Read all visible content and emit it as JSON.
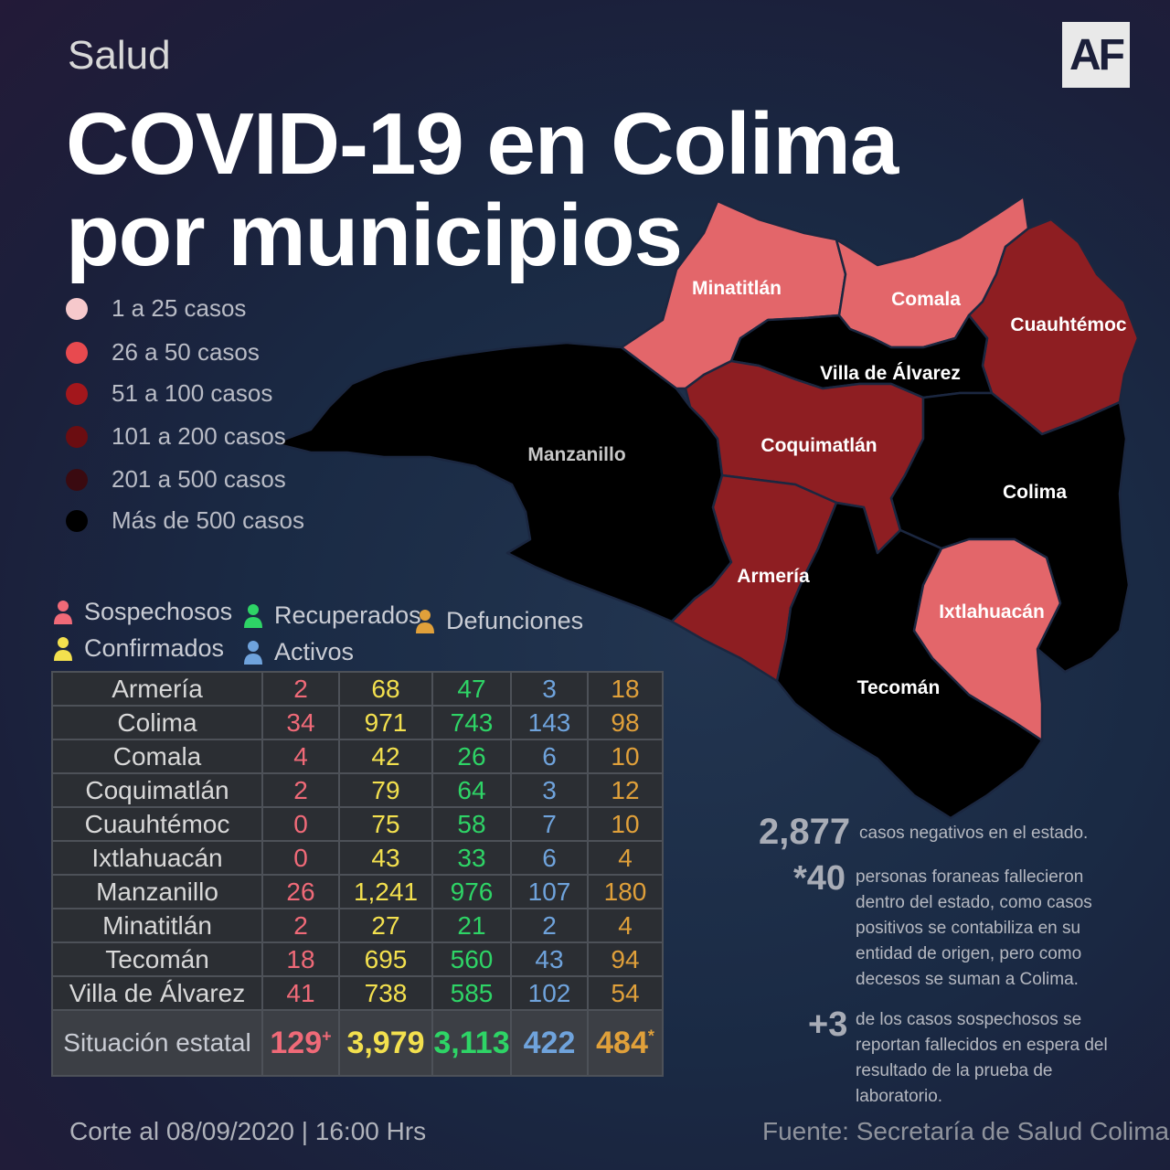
{
  "header": {
    "section": "Salud",
    "title_line1": "COVID-19 en Colima",
    "title_line2": "por municipios",
    "logo": "AF"
  },
  "legend": [
    {
      "label": "1 a 25 casos",
      "color": "#f6c9cc"
    },
    {
      "label": "26 a  50 casos",
      "color": "#e84a4f"
    },
    {
      "label": "51 a  100 casos",
      "color": "#a3171c"
    },
    {
      "label": "101 a  200 casos",
      "color": "#6b0d11"
    },
    {
      "label": "201  a  500 casos",
      "color": "#3a0a10"
    },
    {
      "label": "Más de 500 casos",
      "color": "#000000"
    }
  ],
  "categories": {
    "sospechosos": {
      "label": "Sospechosos",
      "color": "#f06a78",
      "icon": "person-icon"
    },
    "confirmados": {
      "label": "Confirmados",
      "color": "#f3e04e",
      "icon": "person-icon"
    },
    "recuperados": {
      "label": "Recuperados",
      "color": "#2ed466",
      "icon": "person-icon"
    },
    "activos": {
      "label": "Activos",
      "color": "#6fa3dc",
      "icon": "person-icon"
    },
    "defunciones": {
      "label": "Defunciones",
      "color": "#e0a03a",
      "icon": "person-icon"
    }
  },
  "map": {
    "colors": {
      "light": "#e3666a",
      "medium": "#8e1e22",
      "black": "#000000"
    },
    "labels": {
      "minatitlan": "Minatitlán",
      "comala": "Comala",
      "cuauhtemoc": "Cuauhtémoc",
      "villa": "Villa de Álvarez",
      "manzanillo": "Manzanillo",
      "coquimatlan": "Coquimatlán",
      "colima": "Colima",
      "armeria": "Armería",
      "ixtlahuacan": "Ixtlahuacán",
      "tecoman": "Tecomán"
    }
  },
  "table": {
    "rows": [
      {
        "name": "Armería",
        "sosp": "2",
        "conf": "68",
        "recu": "47",
        "act": "3",
        "def": "18"
      },
      {
        "name": "Colima",
        "sosp": "34",
        "conf": "971",
        "recu": "743",
        "act": "143",
        "def": "98"
      },
      {
        "name": "Comala",
        "sosp": "4",
        "conf": "42",
        "recu": "26",
        "act": "6",
        "def": "10"
      },
      {
        "name": "Coquimatlán",
        "sosp": "2",
        "conf": "79",
        "recu": "64",
        "act": "3",
        "def": "12"
      },
      {
        "name": "Cuauhtémoc",
        "sosp": "0",
        "conf": "75",
        "recu": "58",
        "act": "7",
        "def": "10"
      },
      {
        "name": "Ixtlahuacán",
        "sosp": "0",
        "conf": "43",
        "recu": "33",
        "act": "6",
        "def": "4"
      },
      {
        "name": "Manzanillo",
        "sosp": "26",
        "conf": "1,241",
        "recu": "976",
        "act": "107",
        "def": "180"
      },
      {
        "name": "Minatitlán",
        "sosp": "2",
        "conf": "27",
        "recu": "21",
        "act": "2",
        "def": "4"
      },
      {
        "name": "Tecomán",
        "sosp": "18",
        "conf": "695",
        "recu": "560",
        "act": "43",
        "def": "94"
      },
      {
        "name": "Villa de Álvarez",
        "sosp": "41",
        "conf": "738",
        "recu": "585",
        "act": "102",
        "def": "54"
      }
    ],
    "total": {
      "name": "Situación estatal",
      "sosp": "129",
      "sosp_mark": "+",
      "conf": "3,979",
      "recu": "3,113",
      "act": "422",
      "def": "484",
      "def_mark": "*"
    }
  },
  "notes": {
    "negativos_num": "2,877",
    "negativos_text": "casos negativos en el estado.",
    "foraneas_num": "*40",
    "foraneas_text": "personas foraneas fallecieron dentro del estado, como casos positivos se contabiliza en su entidad de origen, pero como decesos se suman a Colima.",
    "sospechosos_num": "+3",
    "sospechosos_text": "de los casos sospechosos se reportan fallecidos en espera del resultado de la prueba de laboratorio."
  },
  "footer": {
    "corte": "Corte al 08/09/2020 | 16:00 Hrs",
    "fuente": "Fuente: Secretaría de Salud Colima"
  }
}
